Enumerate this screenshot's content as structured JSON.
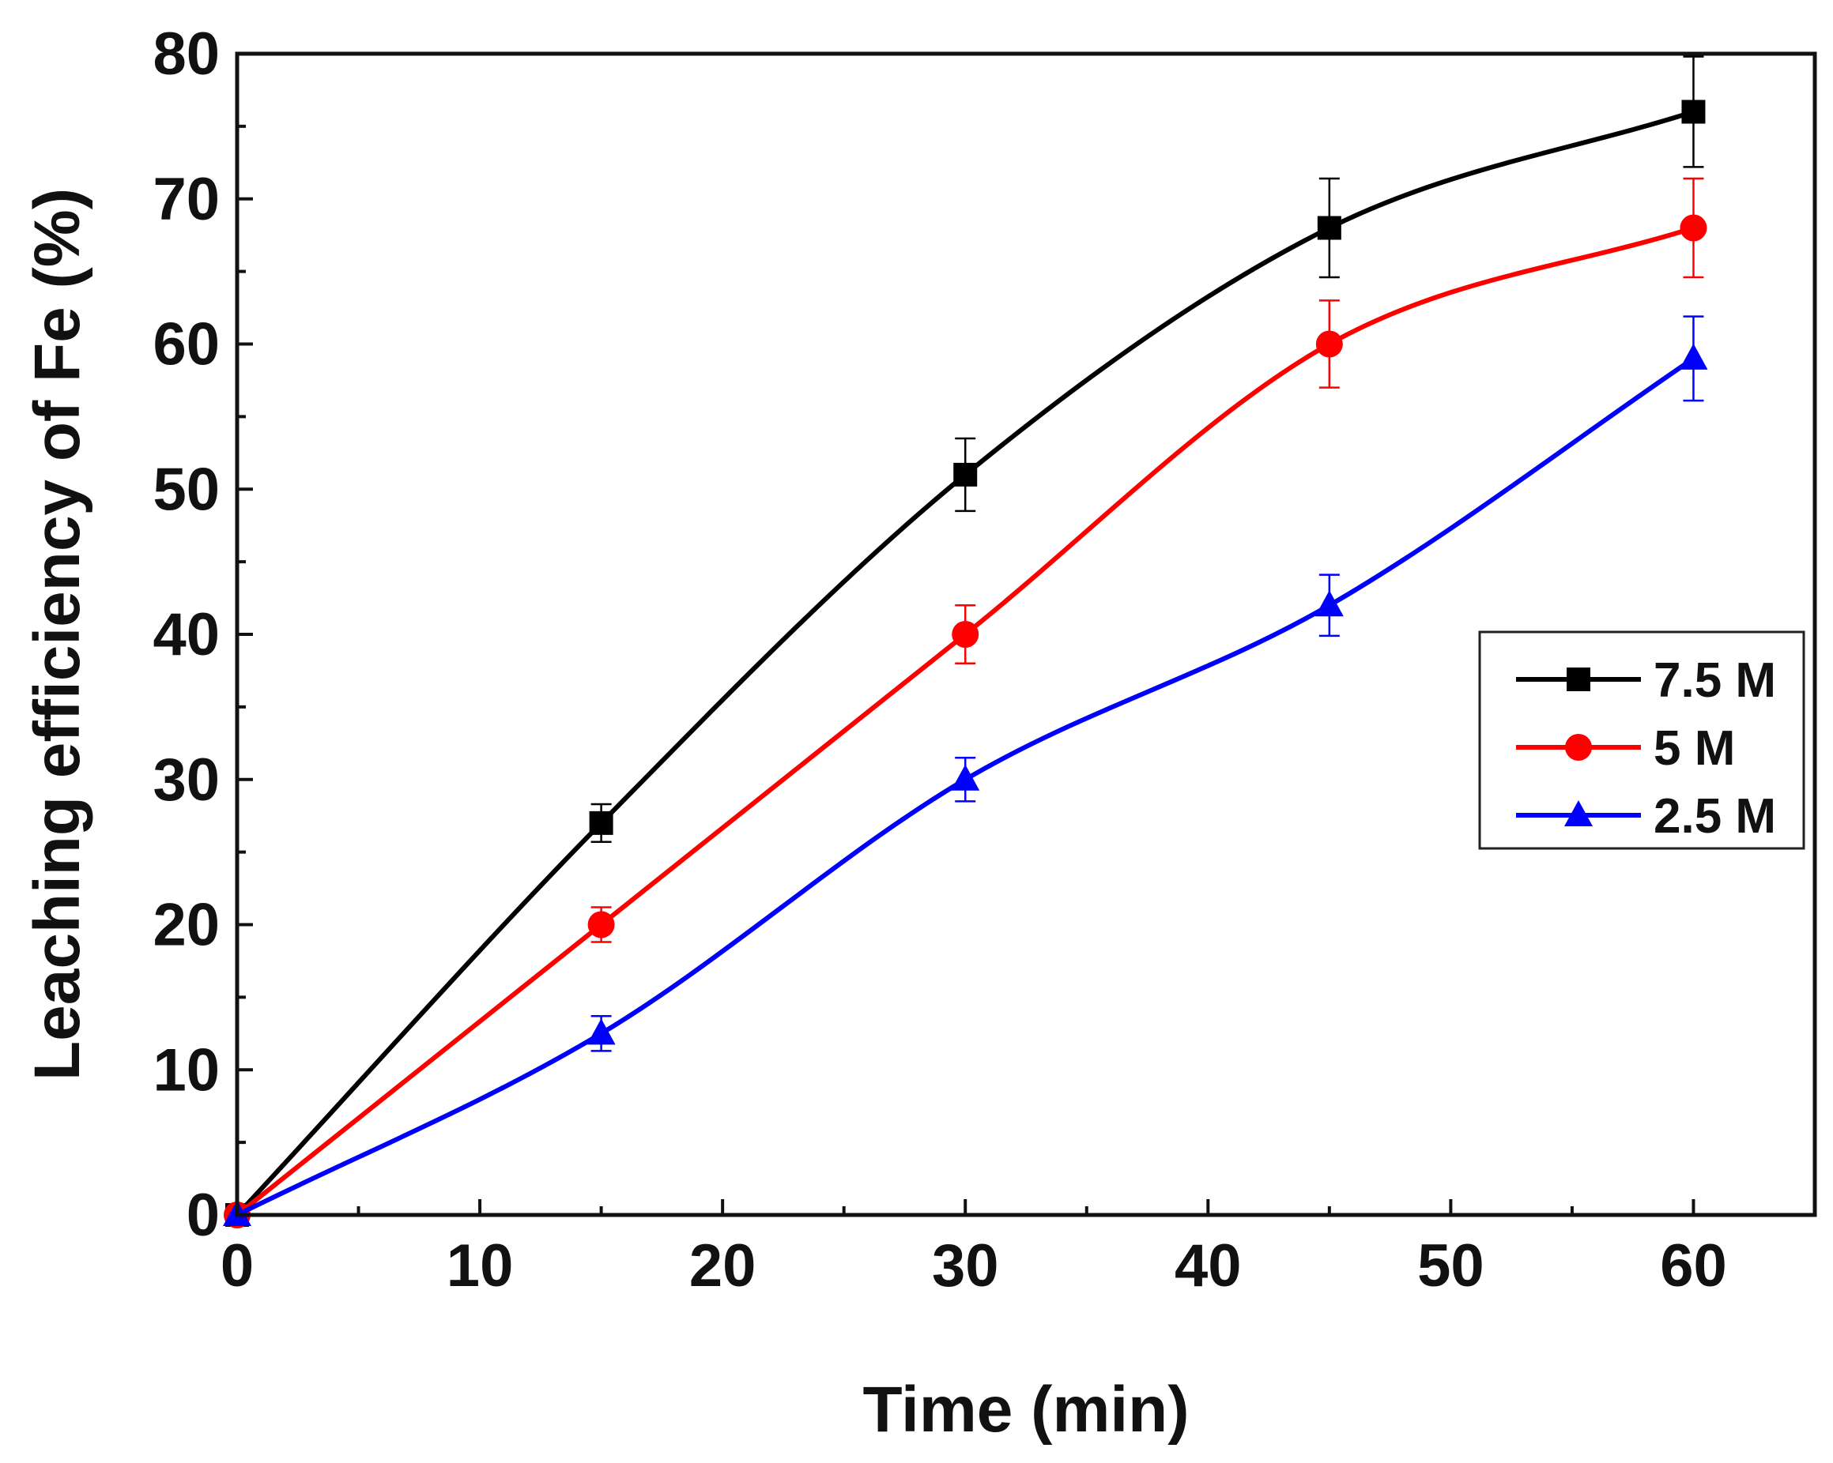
{
  "chart_data": {
    "type": "line",
    "title": "",
    "xlabel": "Time (min)",
    "ylabel": "Leaching efficiency of Fe (%)",
    "xlim": [
      0,
      65
    ],
    "ylim": [
      0,
      80
    ],
    "xticks": [
      0,
      10,
      20,
      30,
      40,
      50,
      60
    ],
    "yticks": [
      0,
      10,
      20,
      30,
      40,
      50,
      60,
      70,
      80
    ],
    "x_minor_step": 5,
    "y_minor_step": 5,
    "legend_position": "center-right",
    "series": [
      {
        "name": "7.5 M",
        "color": "#000000",
        "marker": "square",
        "x": [
          0,
          15,
          30,
          45,
          60
        ],
        "y": [
          0,
          27,
          51,
          68,
          76
        ],
        "err": [
          0,
          1.3,
          2.5,
          3.4,
          3.8
        ]
      },
      {
        "name": "5 M",
        "color": "#ff0000",
        "marker": "circle",
        "x": [
          0,
          15,
          30,
          45,
          60
        ],
        "y": [
          0,
          20,
          40,
          60,
          68
        ],
        "err": [
          0,
          1.2,
          2.0,
          3.0,
          3.4
        ]
      },
      {
        "name": "2.5 M",
        "color": "#0000ff",
        "marker": "triangle",
        "x": [
          0,
          15,
          30,
          45,
          60
        ],
        "y": [
          0,
          12.5,
          30,
          42,
          59
        ],
        "err": [
          0,
          1.2,
          1.5,
          2.1,
          2.9
        ]
      }
    ]
  }
}
